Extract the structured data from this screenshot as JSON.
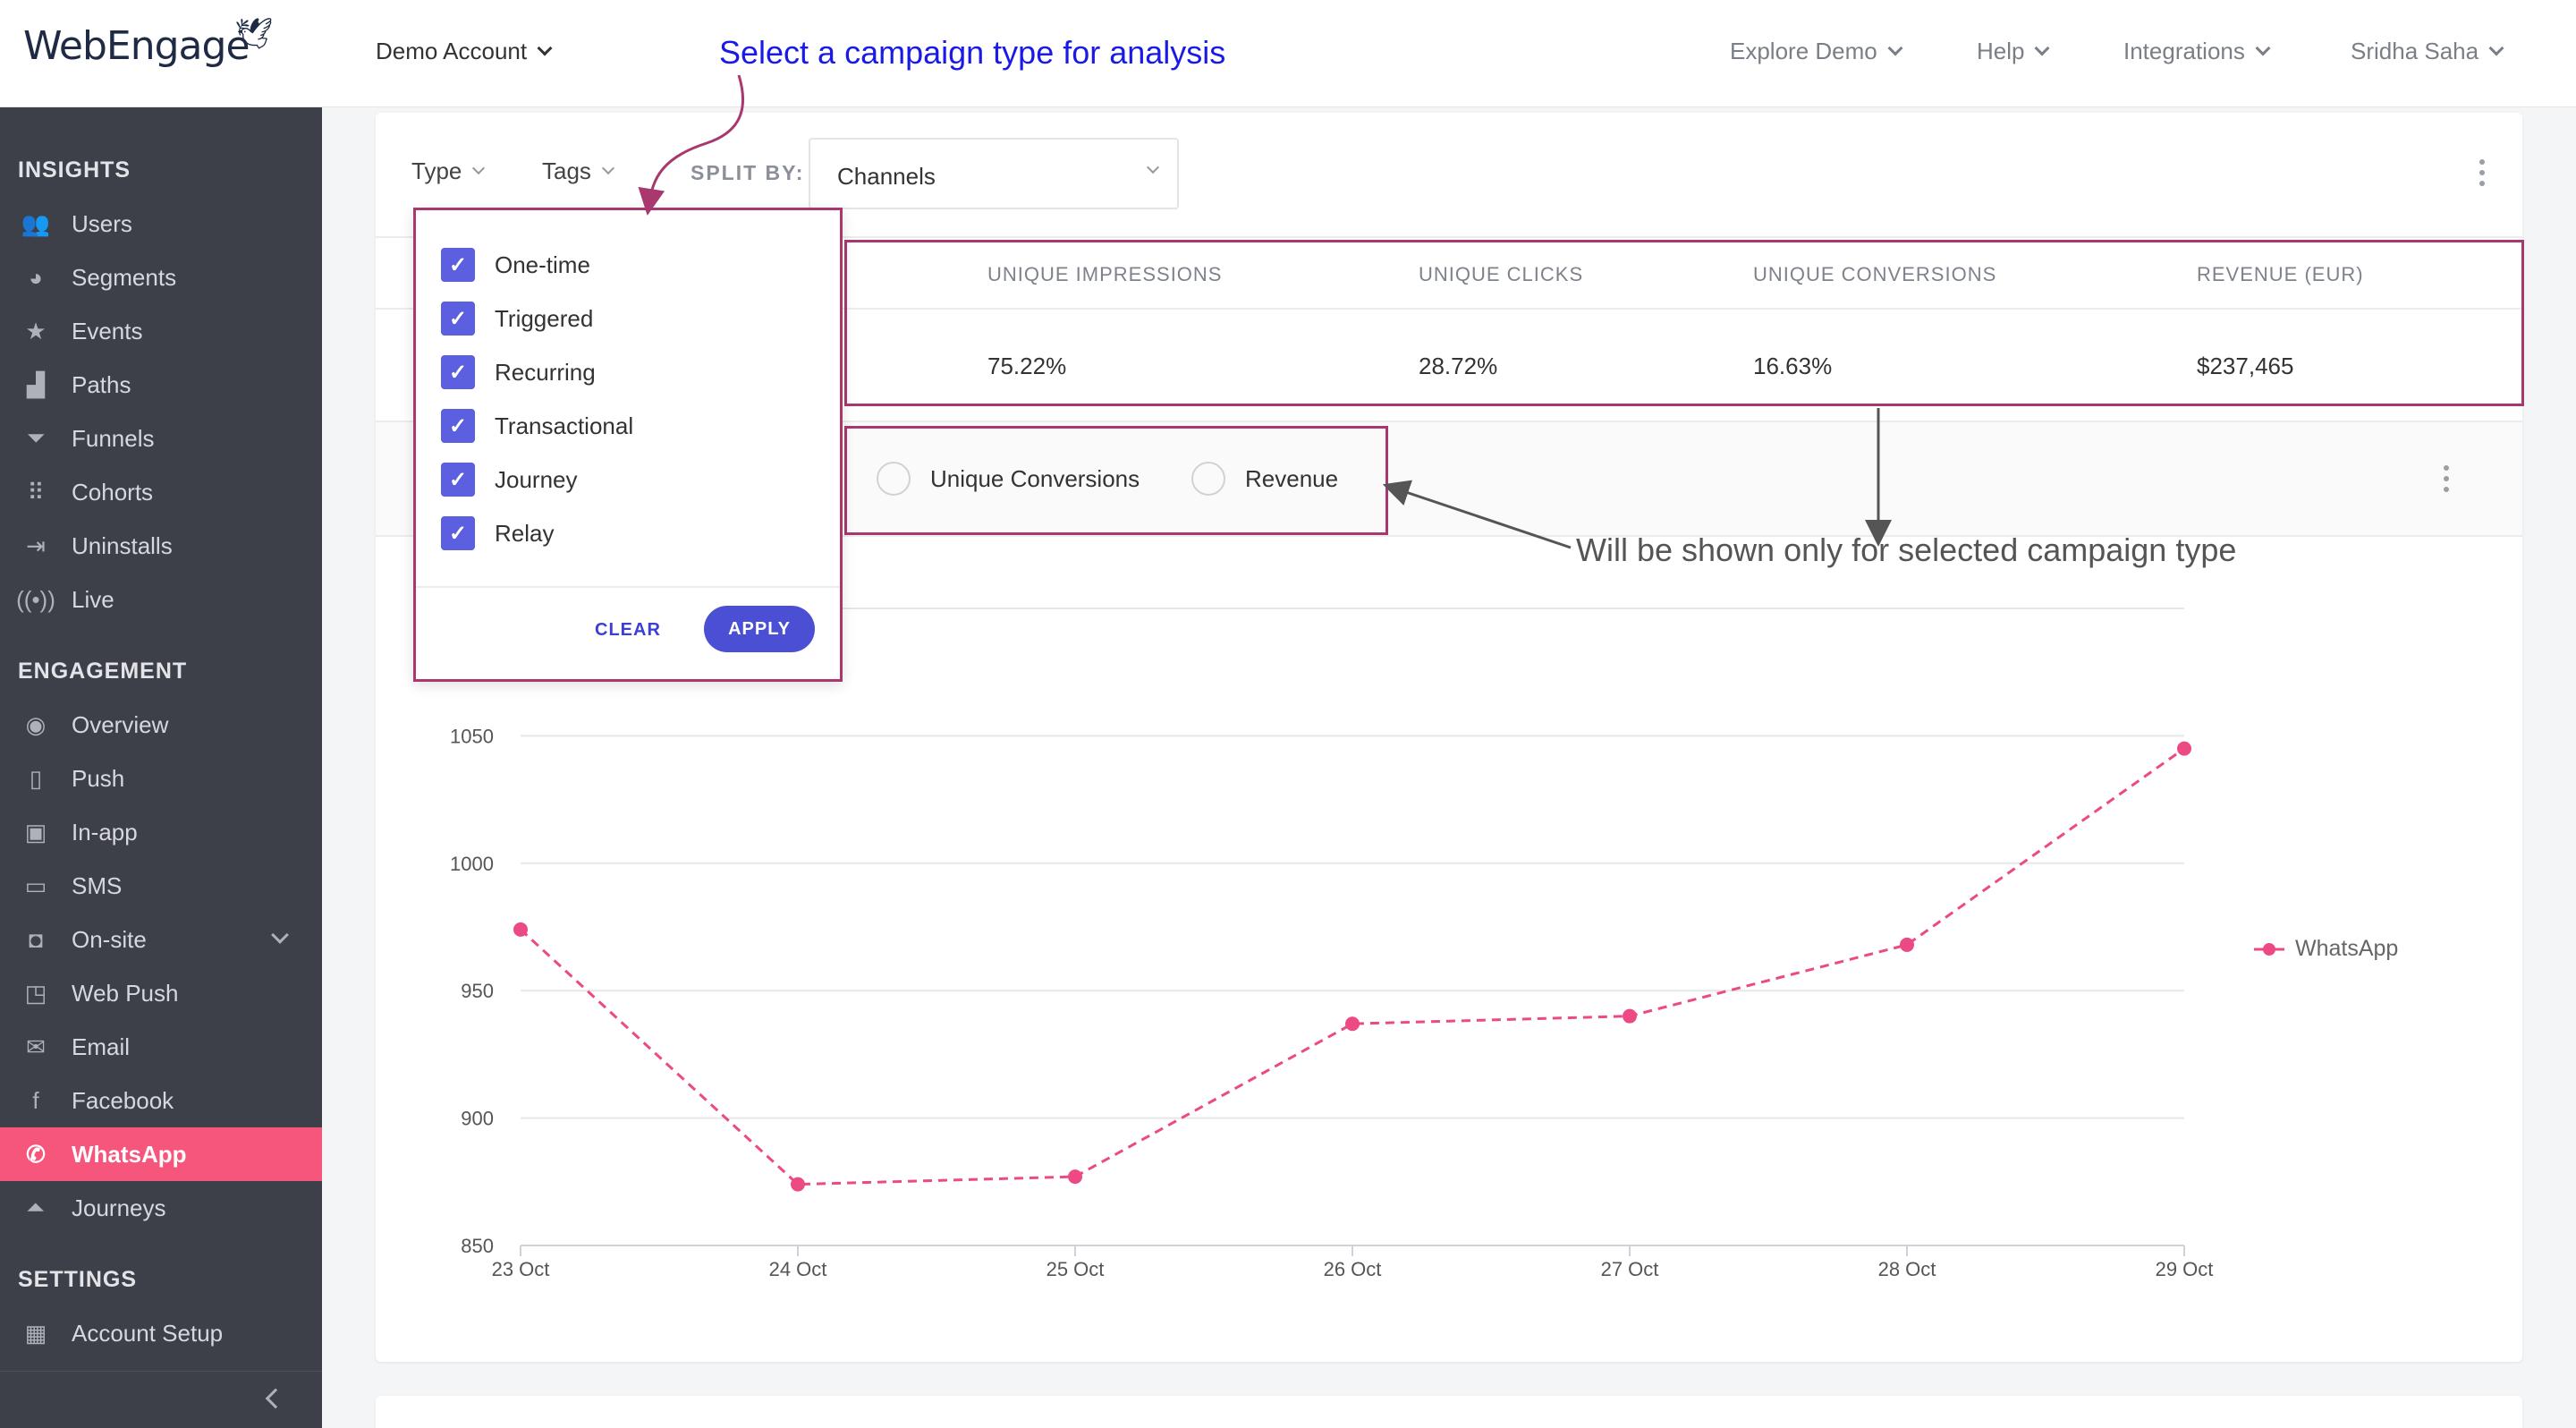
{
  "brand": {
    "logo_text": "WebEngage"
  },
  "topbar": {
    "account": "Demo Account",
    "explore": "Explore Demo",
    "help": "Help",
    "integrations": "Integrations",
    "user": "Sridha Saha"
  },
  "sidebar": {
    "insights_label": "INSIGHTS",
    "insights": [
      "Users",
      "Segments",
      "Events",
      "Paths",
      "Funnels",
      "Cohorts",
      "Uninstalls",
      "Live"
    ],
    "engagement_label": "ENGAGEMENT",
    "engagement": [
      "Overview",
      "Push",
      "In-app",
      "SMS",
      "On-site",
      "Web Push",
      "Email",
      "Facebook",
      "WhatsApp",
      "Journeys"
    ],
    "settings_label": "SETTINGS",
    "settings": [
      "Account Setup"
    ],
    "active": "WhatsApp"
  },
  "filters": {
    "type_label": "Type",
    "tags_label": "Tags",
    "split_by_label": "SPLIT BY:",
    "split_by_value": "Channels"
  },
  "type_dropdown": {
    "options": [
      "One-time",
      "Triggered",
      "Recurring",
      "Transactional",
      "Journey",
      "Relay"
    ],
    "checked": [
      true,
      true,
      true,
      true,
      true,
      true
    ],
    "clear_label": "CLEAR",
    "apply_label": "APPLY"
  },
  "metrics": {
    "headers": [
      "UNIQUE IMPRESSIONS",
      "UNIQUE CLICKS",
      "UNIQUE CONVERSIONS",
      "REVENUE (EUR)"
    ],
    "values": [
      "75.22%",
      "28.72%",
      "16.63%",
      "$237,465"
    ]
  },
  "chart_toggle": {
    "options": [
      "Unique Conversions",
      "Revenue"
    ]
  },
  "annotations": {
    "top": "Select a campaign type for analysis",
    "right": "Will be shown only for selected campaign type"
  },
  "colors": {
    "accent": "#f7567c",
    "series": "#ec4a84",
    "highlight_box": "#a8386e",
    "primary_button": "#4b4fd3"
  },
  "chart_data": {
    "type": "line",
    "x": [
      "23 Oct",
      "24 Oct",
      "25 Oct",
      "26 Oct",
      "27 Oct",
      "28 Oct",
      "29 Oct"
    ],
    "series": [
      {
        "name": "WhatsApp",
        "values": [
          974,
          874,
          877,
          937,
          940,
          968,
          1045
        ]
      }
    ],
    "yticks": [
      850,
      900,
      950,
      1000,
      1050
    ],
    "ylim": [
      850,
      1100
    ],
    "grid": true,
    "line_style": "dashed",
    "legend_position": "right"
  }
}
